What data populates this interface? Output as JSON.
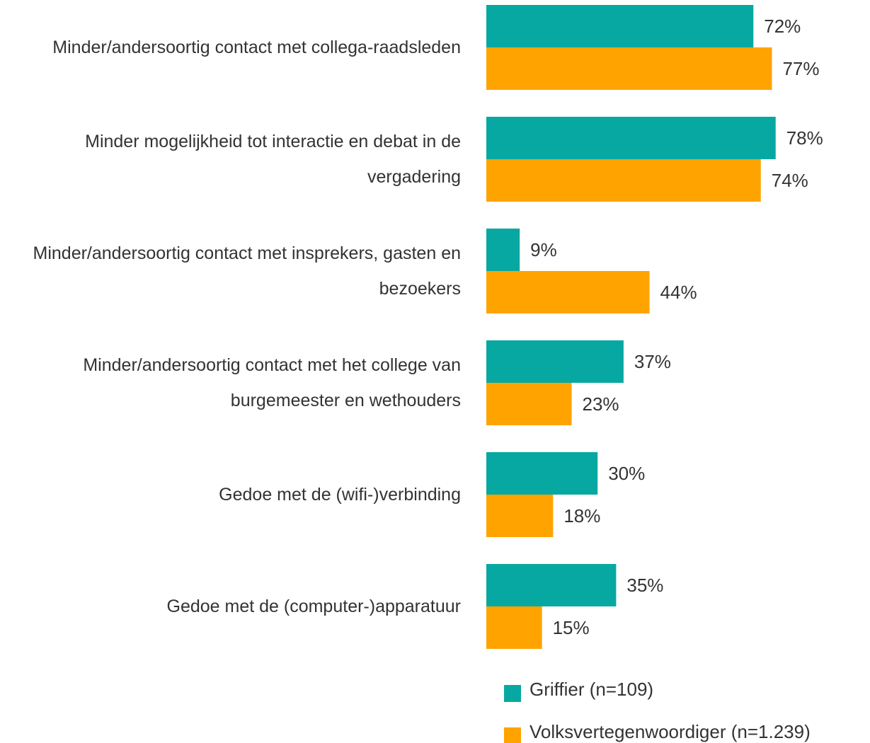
{
  "chart_data": {
    "type": "hbar",
    "categories": [
      "Minder/andersoortig contact met collega-raadsleden",
      "Minder mogelijkheid tot interactie en debat in de vergadering",
      "Minder/andersoortig contact met insprekers, gasten en bezoekers",
      "Minder/andersoortig contact met het college van burgemeester en wethouders",
      "Gedoe met de (wifi-)verbinding",
      "Gedoe met de (computer-)apparatuur"
    ],
    "series": [
      {
        "name": "Griffier (n=109)",
        "color": "#08a8a2",
        "values": [
          72,
          78,
          9,
          37,
          30,
          35
        ],
        "value_labels": [
          "72%",
          "78%",
          "9%",
          "37%",
          "30%",
          "35%"
        ]
      },
      {
        "name": "Volksvertegenwoordiger (n=1.239)",
        "color": "#ffa300",
        "values": [
          77,
          74,
          44,
          23,
          18,
          15
        ],
        "value_labels": [
          "77%",
          "74%",
          "44%",
          "23%",
          "18%",
          "15%"
        ]
      }
    ],
    "legend": "bottom"
  }
}
